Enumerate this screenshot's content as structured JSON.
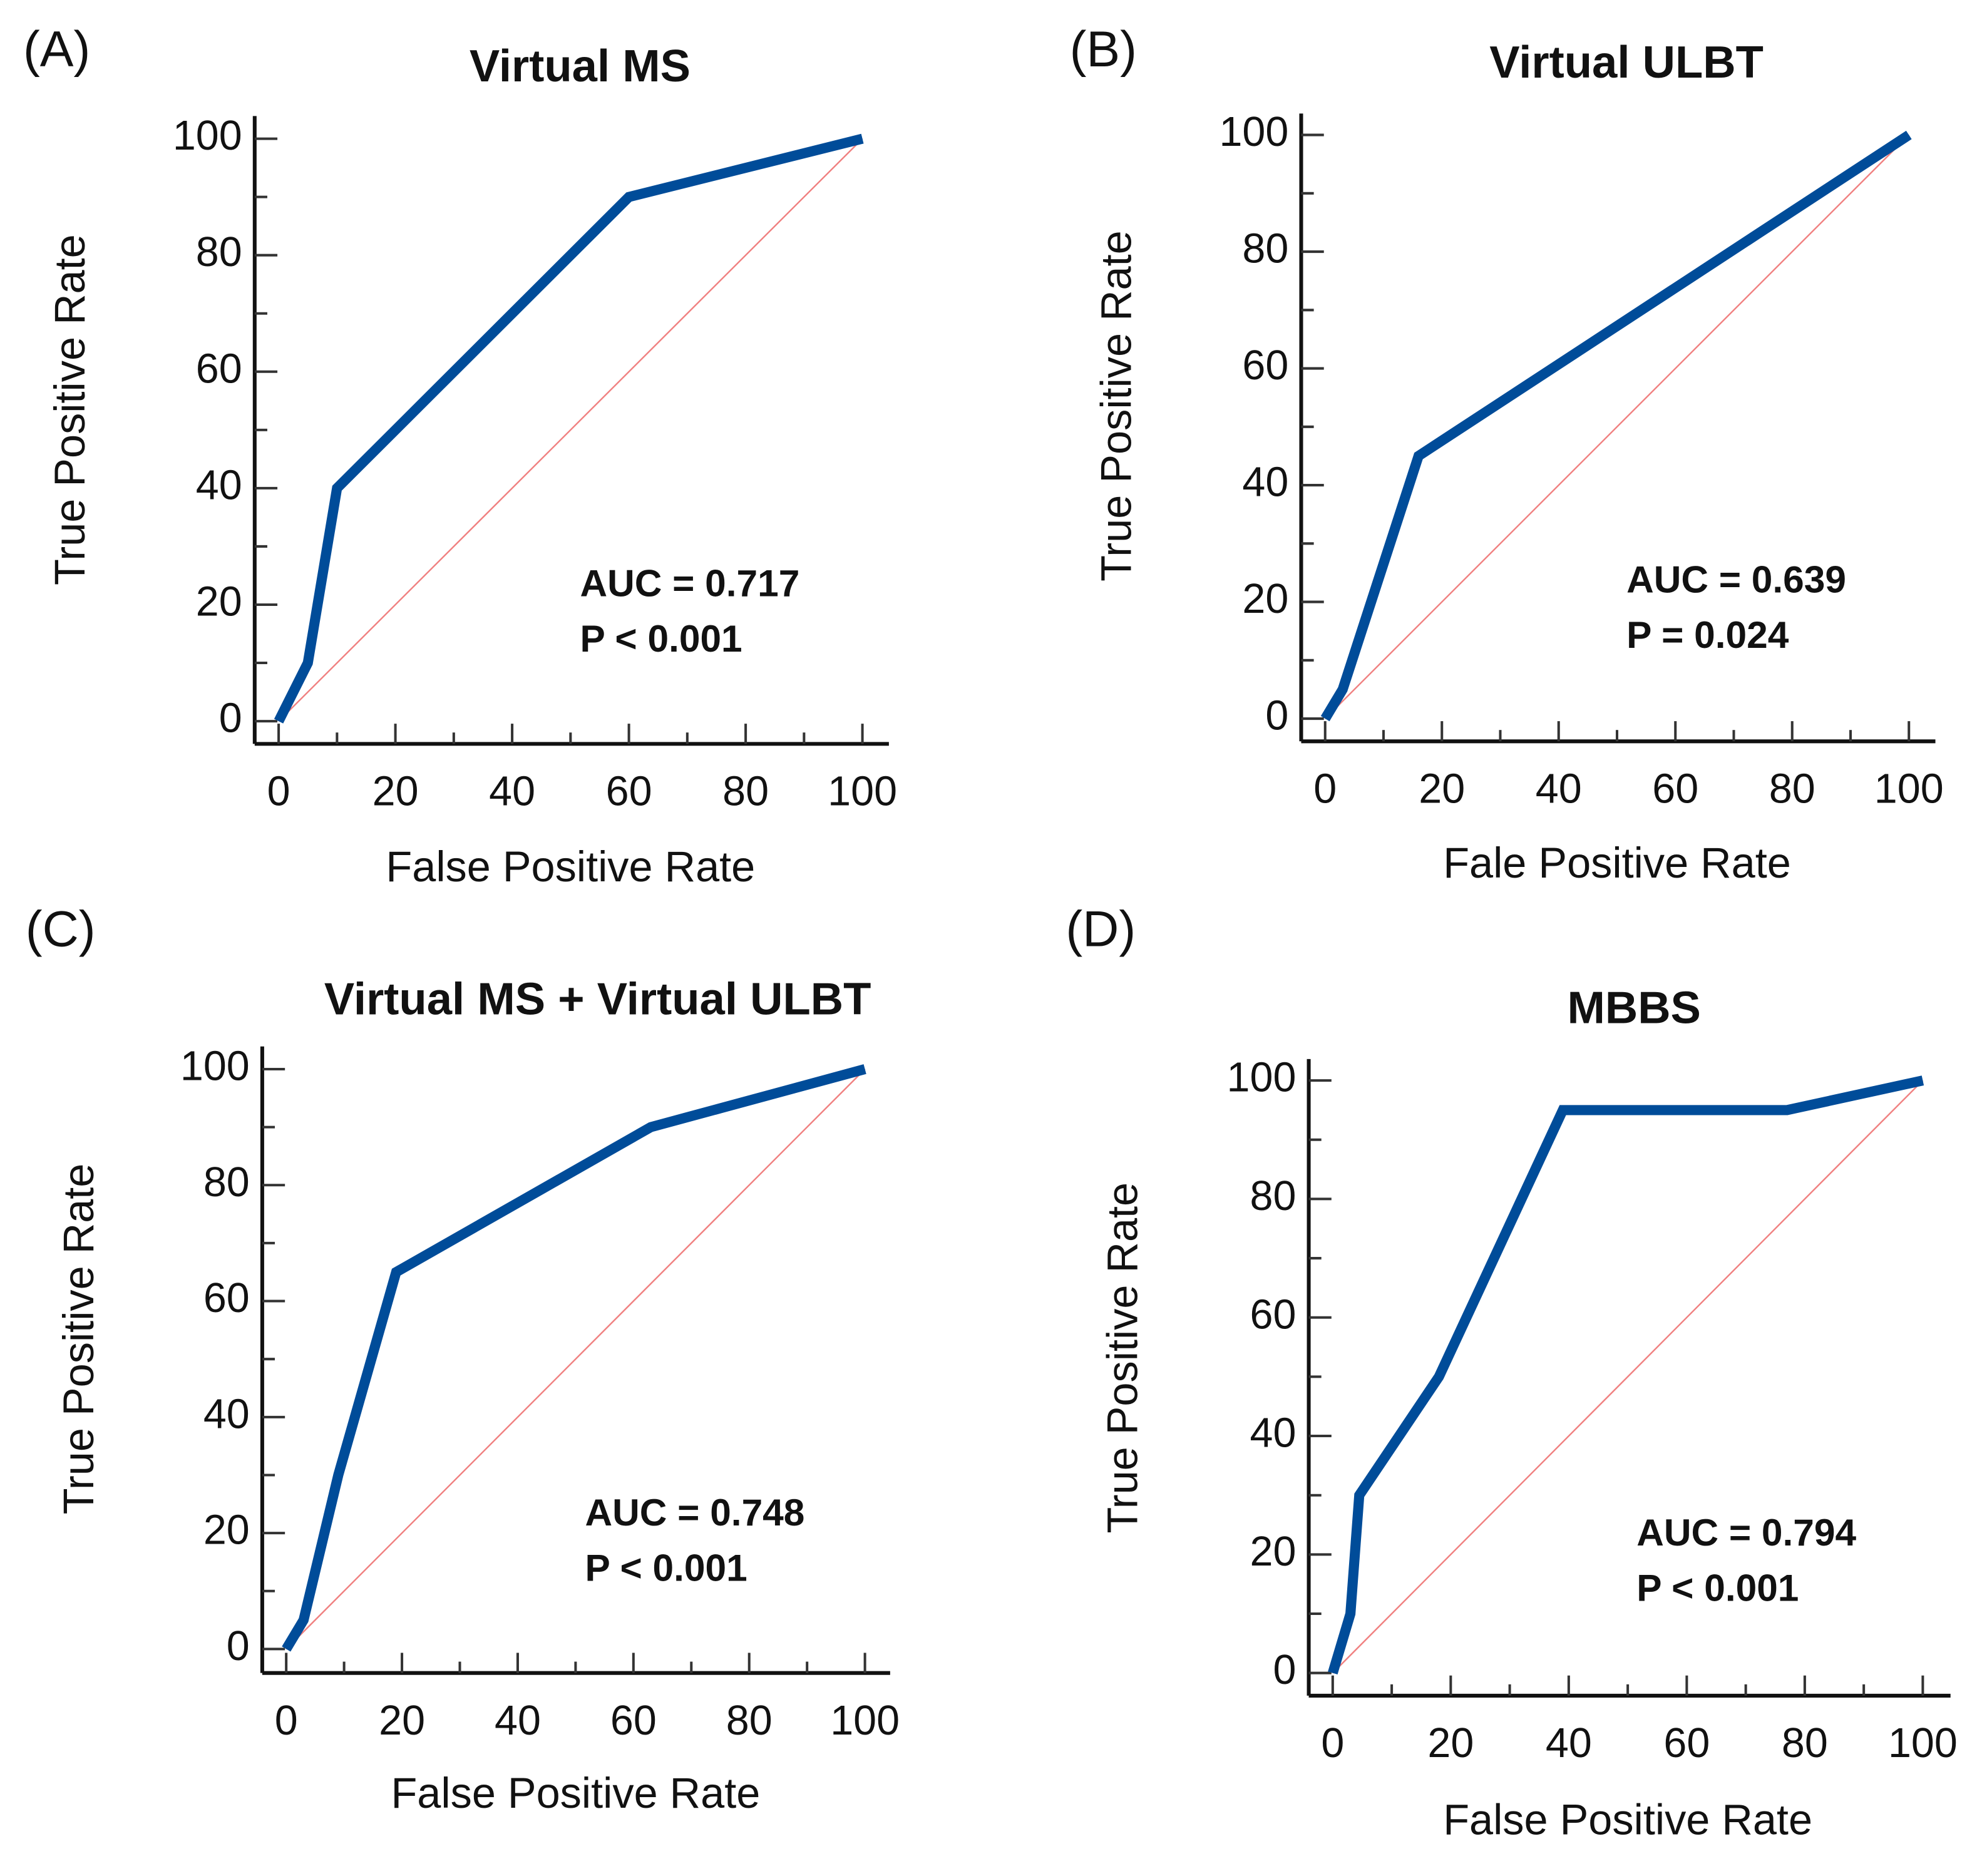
{
  "colors": {
    "roc": "#004c99",
    "diagonal": "#f08080",
    "axis": "#111111"
  },
  "chart_data": [
    {
      "type": "line",
      "panel": "(A)",
      "title": "Virtual MS",
      "xlabel": "False Positive Rate",
      "ylabel": "True Positive Rate",
      "xlim": [
        0,
        100
      ],
      "ylim": [
        0,
        100
      ],
      "xticks": [
        "0",
        "20",
        "40",
        "60",
        "80",
        "100"
      ],
      "yticks": [
        "0",
        "20",
        "40",
        "60",
        "80",
        "100"
      ],
      "grid": false,
      "x": [
        0,
        5,
        10,
        60,
        100
      ],
      "y": [
        0,
        10,
        40,
        90,
        100
      ],
      "reference_line": [
        [
          0,
          0
        ],
        [
          100,
          100
        ]
      ],
      "annotations": [
        "AUC = 0.717",
        "P < 0.001"
      ]
    },
    {
      "type": "line",
      "panel": "(B)",
      "title": "Virtual ULBT",
      "xlabel": "Fale Positive Rate",
      "ylabel": "True Positive Rate",
      "xlim": [
        0,
        100
      ],
      "ylim": [
        0,
        100
      ],
      "xticks": [
        "0",
        "20",
        "40",
        "60",
        "80",
        "100"
      ],
      "yticks": [
        "0",
        "20",
        "40",
        "60",
        "80",
        "100"
      ],
      "grid": false,
      "x": [
        0,
        3,
        16,
        100
      ],
      "y": [
        0,
        5,
        45,
        100
      ],
      "reference_line": [
        [
          0,
          0
        ],
        [
          100,
          100
        ]
      ],
      "annotations": [
        "AUC = 0.639",
        "P = 0.024"
      ]
    },
    {
      "type": "line",
      "panel": "(C)",
      "title": "Virtual MS + Virtual ULBT",
      "xlabel": "False Positive Rate",
      "ylabel": "True Positive Rate",
      "xlim": [
        0,
        100
      ],
      "ylim": [
        0,
        100
      ],
      "xticks": [
        "0",
        "20",
        "40",
        "60",
        "80",
        "100"
      ],
      "yticks": [
        "0",
        "20",
        "40",
        "60",
        "80",
        "100"
      ],
      "grid": false,
      "x": [
        0,
        3,
        9,
        19,
        63,
        100
      ],
      "y": [
        0,
        5,
        30,
        65,
        90,
        100
      ],
      "reference_line": [
        [
          0,
          0
        ],
        [
          100,
          100
        ]
      ],
      "annotations": [
        "AUC = 0.748",
        "P < 0.001"
      ]
    },
    {
      "type": "line",
      "panel": "(D)",
      "title": "MBBS",
      "xlabel": "False Positive Rate",
      "ylabel": "True Positive Rate",
      "xlim": [
        0,
        100
      ],
      "ylim": [
        0,
        100
      ],
      "xticks": [
        "0",
        "20",
        "40",
        "60",
        "80",
        "100"
      ],
      "yticks": [
        "0",
        "20",
        "40",
        "60",
        "80",
        "100"
      ],
      "grid": false,
      "x": [
        0,
        3,
        4.5,
        18,
        39,
        77,
        100
      ],
      "y": [
        0,
        10,
        30,
        50,
        95,
        95,
        100
      ],
      "reference_line": [
        [
          0,
          0
        ],
        [
          100,
          100
        ]
      ],
      "annotations": [
        "AUC = 0.794",
        "P < 0.001"
      ]
    }
  ]
}
